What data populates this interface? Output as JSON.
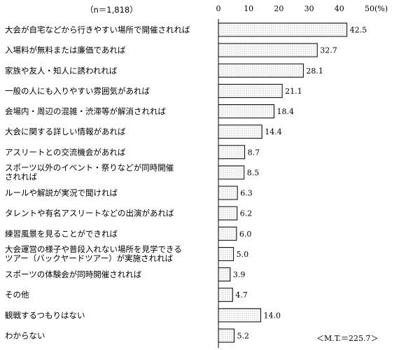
{
  "chart_data": {
    "type": "bar",
    "orientation": "horizontal",
    "sample_note": "（n＝1,818）",
    "x_ticks": [
      "0",
      "10",
      "20",
      "30",
      "40",
      "50(%)"
    ],
    "xlim": [
      0,
      50
    ],
    "grid": false,
    "categories": [
      [
        "大会が自宅などから行きやすい場所で開催されれば"
      ],
      [
        "入場料が無料または廉価であれば"
      ],
      [
        "家族や友人・知人に誘われれば"
      ],
      [
        "一般の人にも入りやすい雰囲気があれば"
      ],
      [
        "会場内・周辺の混雑・渋滞等が解消されれば"
      ],
      [
        "大会に関する詳しい情報があれば"
      ],
      [
        "アスリートとの交流機会があれば"
      ],
      [
        "スポーツ以外のイベント・祭りなどが同時開催",
        "されれば"
      ],
      [
        "ルールや解説が実況で聞ければ"
      ],
      [
        "タレントや有名アスリートなどの出演があれば"
      ],
      [
        "練習風景を見ることができれば"
      ],
      [
        "大会運営の様子や普段入れない場所を見学できる",
        "ツアー（バックヤードツアー）が実施されれば"
      ],
      [
        "スポーツの体験会が同時開催されれば"
      ],
      [
        "その他"
      ],
      [
        "観戦するつもりはない"
      ],
      [
        "わからない"
      ]
    ],
    "values": [
      42.5,
      32.7,
      28.1,
      21.1,
      18.4,
      14.4,
      8.7,
      8.5,
      6.3,
      6.2,
      6.0,
      5.0,
      3.9,
      4.7,
      14.0,
      5.2
    ],
    "value_labels": [
      "42.5",
      "32.7",
      "28.1",
      "21.1",
      "18.4",
      "14.4",
      "8.7",
      "8.5",
      "6.3",
      "6.2",
      "6.0",
      "5.0",
      "3.9",
      "4.7",
      "14.0",
      "5.2"
    ],
    "annotation": "＜M.T.＝225.7＞",
    "bar_fill": "#e6e6e6",
    "bar_stroke": "#000000"
  }
}
